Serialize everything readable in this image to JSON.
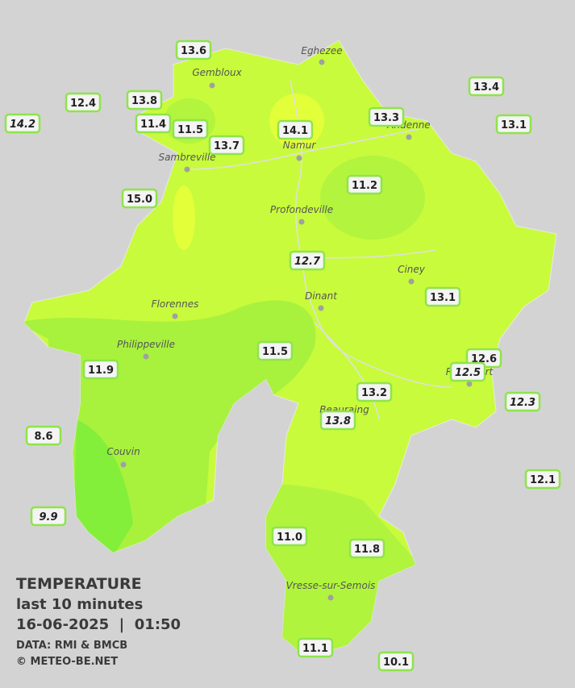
{
  "map": {
    "legend": {
      "title": "TEMPERATURE",
      "subtitle": "last 10 minutes",
      "datetime": "16-06-2025  |  01:50",
      "source": "DATA: RMI & BMCB",
      "copyright": "© METEO-BE.NET"
    },
    "towns": [
      "Eghezee",
      "Gembloux",
      "Andenne",
      "Namur",
      "Sambreville",
      "Profondeville",
      "Ciney",
      "Dinant",
      "Florennes",
      "Philippeville",
      "Rochefort",
      "Beauraing",
      "Couvin",
      "Vresse-sur-Semois"
    ],
    "stations": [
      "13.6",
      "12.4",
      "13.8",
      "14.2",
      "11.4",
      "11.5",
      "13.7",
      "14.1",
      "13.3",
      "13.4",
      "13.1",
      "15.0",
      "11.2",
      "12.7",
      "13.1",
      "11.5",
      "11.9",
      "12.6",
      "12.5",
      "12.3",
      "13.2",
      "13.8",
      "8.6",
      "12.1",
      "9.9",
      "11.0",
      "11.8",
      "11.1",
      "10.1"
    ]
  }
}
